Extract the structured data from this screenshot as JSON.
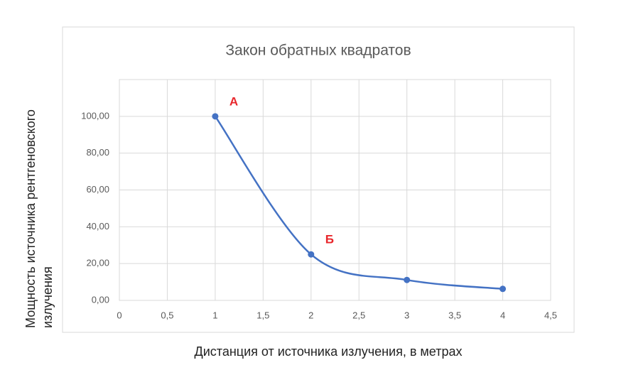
{
  "chart_data": {
    "type": "scatter",
    "title": "Закон обратных квадратов",
    "x_label": "Дистанция от источника излучения, в метрах",
    "y_label": "Мощность источника рентгеновского излучения",
    "series": [
      {
        "color": "#4472c4",
        "x": [
          1,
          2,
          3,
          4
        ],
        "values": [
          100,
          25,
          11.11,
          6.25
        ]
      }
    ],
    "annotations": [
      "А",
      "Б"
    ],
    "xlim": [
      0,
      4.5
    ],
    "xticks": [
      0,
      {
        "value": 0.5,
        "label": "0,5"
      },
      1,
      {
        "value": 1.5,
        "label": "1,5"
      },
      2,
      {
        "value": 2.5,
        "label": "2,5"
      },
      3,
      {
        "value": 3.5,
        "label": "3,5"
      },
      4,
      {
        "value": 4.5,
        "label": "4,5"
      }
    ],
    "ylim": [
      0,
      120
    ],
    "yticks": [
      {
        "value": 0,
        "label": "0,00"
      },
      {
        "value": 20,
        "label": "20,00"
      },
      {
        "value": 40,
        "label": "40,00"
      },
      {
        "value": 60,
        "label": "60,00"
      },
      {
        "value": 80,
        "label": "80,00"
      },
      {
        "value": 100,
        "label": "100,00"
      }
    ],
    "grid": true,
    "smooth": true
  }
}
